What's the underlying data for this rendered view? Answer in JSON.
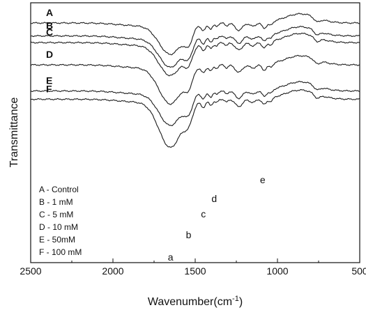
{
  "chart_data": {
    "type": "line",
    "title": "",
    "xlabel": "Wavenumber(cm",
    "xlabel_sup": "-1",
    "xlabel_close": ")",
    "ylabel": "Transmittance",
    "xlim": [
      2500,
      500
    ],
    "x_reversed": true,
    "y_ticks_shown": false,
    "grid": false,
    "x_ticks": [
      "2500",
      "2000",
      "1500",
      "1000",
      "500"
    ],
    "x_tick_values": [
      2500,
      2000,
      1500,
      1000,
      500
    ],
    "legend_placement": "bottom-left",
    "legend": [
      "A - Control",
      "B - 1 mM",
      "C - 5 mM",
      "D - 10 mM",
      "E - 50mM",
      "F - 100 mM"
    ],
    "peak_annotations": [
      {
        "label": "a",
        "x": 1650
      },
      {
        "label": "b",
        "x": 1540
      },
      {
        "label": "c",
        "x": 1450
      },
      {
        "label": "d",
        "x": 1410
      },
      {
        "label": "e",
        "x": 1090
      }
    ],
    "series": [
      {
        "name": "A",
        "offset": 0.0,
        "depth": 1.0
      },
      {
        "name": "B",
        "offset": 0.58,
        "depth": 1.0
      },
      {
        "name": "C",
        "offset": 0.88,
        "depth": 1.05
      },
      {
        "name": "D",
        "offset": 1.88,
        "depth": 1.25
      },
      {
        "name": "E",
        "offset": 3.05,
        "depth": 1.1
      },
      {
        "name": "F",
        "offset": 3.42,
        "depth": 1.55
      }
    ]
  }
}
